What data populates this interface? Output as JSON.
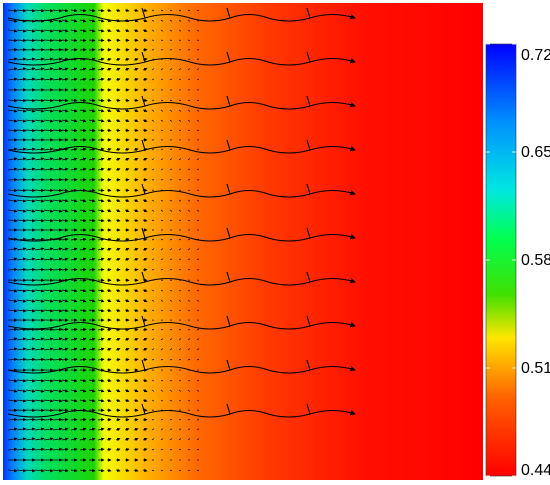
{
  "chart_data": {
    "type": "heatmap",
    "title": "",
    "xlabel": "",
    "ylabel": "",
    "colorbar": {
      "min": 0.44,
      "max": 0.72,
      "ticks": [
        "0.72",
        "0.65",
        "0.58",
        "0.51",
        "0.44"
      ],
      "colors": [
        "#ff0000",
        "#ff7a00",
        "#ffe000",
        "#28e000",
        "#00ff40",
        "#00e8e0",
        "#0098ff",
        "#0000ff"
      ]
    },
    "field": {
      "description_values_left_to_right": [
        0.72,
        0.61,
        0.55,
        0.51,
        0.48,
        0.46,
        0.45,
        0.44
      ],
      "value_min": 0.44,
      "value_max": 0.72
    },
    "vectors": "velocity field with streamlines"
  }
}
